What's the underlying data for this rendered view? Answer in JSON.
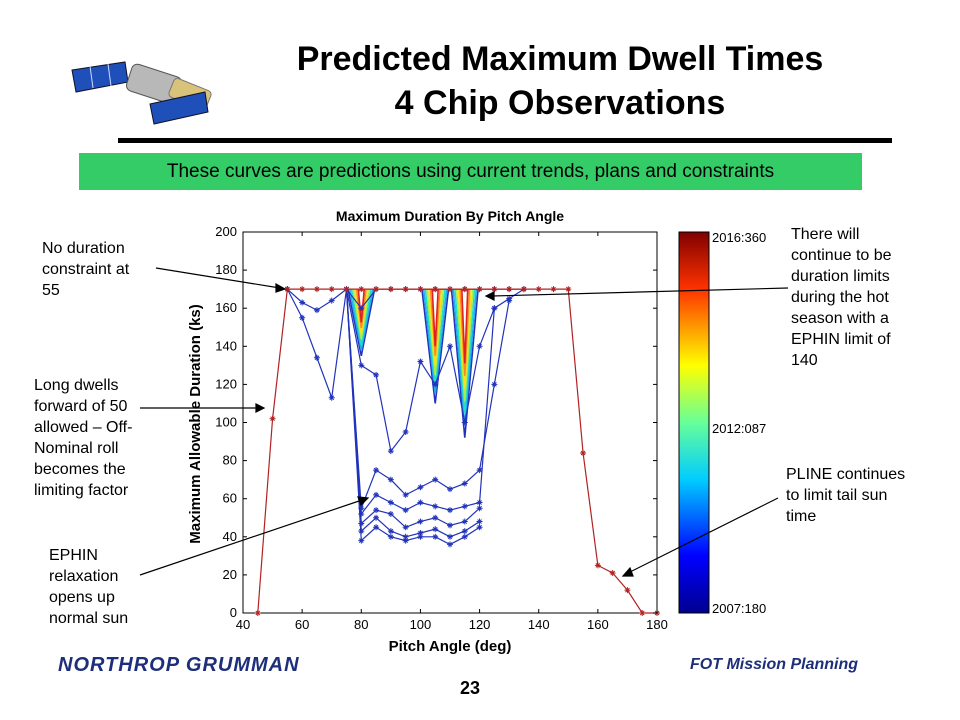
{
  "slide": {
    "title_line1": "Predicted Maximum Dwell Times",
    "title_line2": "4 Chip Observations",
    "banner": "These curves are predictions using current trends, plans and constraints",
    "page_number": "23",
    "footer_left": "NORTHROP GRUMMAN",
    "footer_right": "FOT Mission Planning",
    "colors": {
      "banner": "#33cc66",
      "footer_text": "#1d2f7a",
      "outer_curve": "#b22222",
      "inner_curves": "#2233bb"
    }
  },
  "annotations": {
    "no_duration": [
      "No duration",
      "constraint at",
      "55"
    ],
    "long_dwells": [
      "Long dwells",
      "forward of 50",
      "allowed – Off-",
      "Nominal roll",
      "becomes the",
      "limiting factor"
    ],
    "ephin": [
      "EPHIN",
      "relaxation",
      "opens up",
      "normal sun"
    ],
    "hot_season": [
      "There will",
      "continue to be",
      "duration limits",
      "during the hot",
      "season with a",
      "EPHIN limit of",
      "140"
    ],
    "pline": [
      "PLINE continues",
      "to limit tail sun",
      "time"
    ]
  },
  "chart_data": {
    "type": "line",
    "title": "Maximum Duration By Pitch Angle",
    "xlabel": "Pitch Angle (deg)",
    "ylabel": "Maximum Allowable Duration (ks)",
    "xlim": [
      40,
      180
    ],
    "ylim": [
      0,
      200
    ],
    "xticks": [
      40,
      60,
      80,
      100,
      120,
      140,
      160,
      180
    ],
    "yticks": [
      0,
      20,
      40,
      60,
      80,
      100,
      120,
      140,
      160,
      180,
      200
    ],
    "colorbar": {
      "labels": [
        "2016:360",
        "2012:087",
        "2007:180"
      ]
    },
    "series": [
      {
        "color": "#b22222",
        "x": [
          45,
          50,
          55,
          60,
          65,
          70,
          75,
          80,
          85,
          90,
          95,
          100,
          105,
          110,
          115,
          120,
          125,
          130,
          135,
          140,
          145,
          150,
          155,
          160,
          165,
          170,
          175,
          180
        ],
        "y": [
          0,
          102,
          170,
          170,
          170,
          170,
          170,
          170,
          170,
          170,
          170,
          170,
          170,
          170,
          170,
          170,
          170,
          170,
          170,
          170,
          170,
          170,
          84,
          25,
          21,
          12,
          0,
          0
        ]
      },
      {
        "color": "#2233bb",
        "x": [
          55,
          60,
          65,
          70,
          75,
          80,
          85,
          90,
          95,
          100,
          105,
          110,
          115,
          120,
          125,
          130,
          135
        ],
        "y": [
          170,
          163,
          159,
          164,
          170,
          160,
          170,
          170,
          170,
          170,
          170,
          170,
          170,
          170,
          170,
          170,
          170
        ]
      },
      {
        "color": "#2233bb",
        "x": [
          55,
          60,
          65,
          70,
          75,
          80,
          85,
          90,
          95,
          100,
          105,
          110,
          115,
          120,
          125,
          130,
          135
        ],
        "y": [
          170,
          155,
          134,
          113,
          170,
          130,
          125,
          85,
          95,
          132,
          120,
          140,
          100,
          140,
          160,
          165,
          170
        ]
      },
      {
        "color": "#2233bb",
        "x": [
          75,
          80,
          85,
          90,
          95,
          100,
          105,
          110,
          115,
          120,
          125,
          130
        ],
        "y": [
          170,
          55,
          75,
          70,
          62,
          66,
          70,
          65,
          68,
          75,
          120,
          164
        ]
      },
      {
        "color": "#2233bb",
        "x": [
          75,
          80,
          85,
          90,
          95,
          100,
          105,
          110,
          115,
          120,
          125
        ],
        "y": [
          170,
          52,
          62,
          58,
          54,
          58,
          56,
          54,
          56,
          58,
          160
        ]
      },
      {
        "color": "#2233bb",
        "x": [
          75,
          80,
          85,
          90,
          95,
          100,
          105,
          110,
          115,
          120
        ],
        "y": [
          170,
          47,
          54,
          52,
          45,
          48,
          50,
          46,
          48,
          55
        ]
      },
      {
        "color": "#2233bb",
        "x": [
          75,
          80,
          85,
          90,
          95,
          100,
          105,
          110,
          115,
          120
        ],
        "y": [
          170,
          43,
          50,
          43,
          40,
          42,
          44,
          40,
          43,
          48
        ]
      },
      {
        "color": "#2233bb",
        "x": [
          75,
          80,
          85,
          90,
          95,
          100,
          105,
          110,
          115,
          120
        ],
        "y": [
          170,
          38,
          45,
          40,
          38,
          40,
          40,
          36,
          40,
          45
        ]
      }
    ],
    "fans": [
      {
        "center": 80,
        "min": 135,
        "colors": [
          "#2233bb",
          "#22aaee",
          "#22ddcc",
          "#aaee44",
          "#ffdd22",
          "#ff8822",
          "#dd2222"
        ]
      },
      {
        "center": 105,
        "min": 110,
        "colors": [
          "#2233bb",
          "#22aaee",
          "#22ddcc",
          "#aaee44",
          "#ffdd22",
          "#ff8822",
          "#dd2222"
        ]
      },
      {
        "center": 115,
        "min": 92,
        "colors": [
          "#2233bb",
          "#22aaee",
          "#22ddcc",
          "#aaee44",
          "#ffdd22",
          "#ff8822",
          "#dd2222"
        ]
      }
    ]
  }
}
